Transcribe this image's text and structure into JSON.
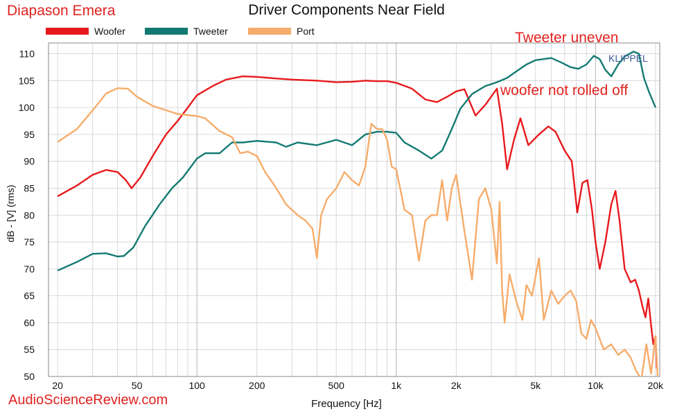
{
  "brand": "Diapason Emera",
  "footer": "AudioScienceReview.com",
  "watermark": "KLIPPEL",
  "annotations": {
    "tweeter": "Tweeter uneven",
    "woofer": "woofer not rolled off"
  },
  "colors": {
    "woofer": "#e8191c",
    "tweeter": "#127a72",
    "port": "#f6ac6a",
    "annotation": "#e0221e",
    "grid": "#cfcfcf",
    "watermark": "#3b5998"
  },
  "chart_data": {
    "type": "line",
    "title": "Driver Components Near Field",
    "xlabel": "Frequency [Hz]",
    "ylabel": "dB - [V] (rms)",
    "xscale": "log",
    "xlim": [
      18,
      21000
    ],
    "ylim": [
      50,
      112
    ],
    "grid": true,
    "legend_position": "top-left",
    "x_ticks": [
      {
        "value": 20,
        "label": "20"
      },
      {
        "value": 50,
        "label": "50"
      },
      {
        "value": 100,
        "label": "100"
      },
      {
        "value": 200,
        "label": "200"
      },
      {
        "value": 500,
        "label": "500"
      },
      {
        "value": 1000,
        "label": "1k"
      },
      {
        "value": 2000,
        "label": "2k"
      },
      {
        "value": 5000,
        "label": "5k"
      },
      {
        "value": 10000,
        "label": "10k"
      },
      {
        "value": 20000,
        "label": "20k"
      }
    ],
    "y_ticks": [
      50,
      55,
      60,
      65,
      70,
      75,
      80,
      85,
      90,
      95,
      100,
      105,
      110
    ],
    "series": [
      {
        "name": "Woofer",
        "points": [
          [
            20,
            83.5
          ],
          [
            25,
            85.5
          ],
          [
            30,
            87.5
          ],
          [
            35,
            88.4
          ],
          [
            40,
            88
          ],
          [
            44,
            86.5
          ],
          [
            47,
            85
          ],
          [
            52,
            87
          ],
          [
            60,
            91
          ],
          [
            70,
            95
          ],
          [
            80,
            97.5
          ],
          [
            90,
            100
          ],
          [
            100,
            102.3
          ],
          [
            120,
            104
          ],
          [
            140,
            105.2
          ],
          [
            170,
            105.8
          ],
          [
            200,
            105.7
          ],
          [
            250,
            105.4
          ],
          [
            300,
            105.2
          ],
          [
            400,
            105
          ],
          [
            500,
            104.7
          ],
          [
            600,
            104.8
          ],
          [
            700,
            105
          ],
          [
            800,
            104.9
          ],
          [
            900,
            104.9
          ],
          [
            1000,
            104.6
          ],
          [
            1200,
            103.5
          ],
          [
            1400,
            101.5
          ],
          [
            1600,
            101
          ],
          [
            1800,
            102
          ],
          [
            2000,
            103
          ],
          [
            2200,
            103.4
          ],
          [
            2500,
            98.5
          ],
          [
            2800,
            100.5
          ],
          [
            3200,
            103.5
          ],
          [
            3400,
            97
          ],
          [
            3600,
            88.5
          ],
          [
            3900,
            94
          ],
          [
            4200,
            98
          ],
          [
            4600,
            93
          ],
          [
            5200,
            95
          ],
          [
            5800,
            96.5
          ],
          [
            6300,
            95.5
          ],
          [
            7000,
            92
          ],
          [
            7600,
            90
          ],
          [
            8100,
            80.5
          ],
          [
            8600,
            86
          ],
          [
            9100,
            86.5
          ],
          [
            9600,
            81
          ],
          [
            10000,
            75
          ],
          [
            10500,
            70
          ],
          [
            11200,
            75
          ],
          [
            12000,
            82
          ],
          [
            12600,
            84.5
          ],
          [
            13200,
            79
          ],
          [
            14000,
            70
          ],
          [
            15000,
            67.5
          ],
          [
            15800,
            68
          ],
          [
            16500,
            66
          ],
          [
            17200,
            63
          ],
          [
            17800,
            61
          ],
          [
            18400,
            64.5
          ],
          [
            19000,
            59.5
          ],
          [
            19500,
            56
          ],
          [
            20000,
            57.5
          ],
          [
            20300,
            51.5
          ]
        ]
      },
      {
        "name": "Tweeter",
        "points": [
          [
            20,
            69.7
          ],
          [
            25,
            71.3
          ],
          [
            30,
            72.8
          ],
          [
            35,
            72.9
          ],
          [
            40,
            72.3
          ],
          [
            43,
            72.4
          ],
          [
            48,
            74
          ],
          [
            55,
            78
          ],
          [
            65,
            82
          ],
          [
            75,
            85
          ],
          [
            85,
            87
          ],
          [
            100,
            90.5
          ],
          [
            110,
            91.5
          ],
          [
            130,
            91.5
          ],
          [
            150,
            93.5
          ],
          [
            170,
            93.5
          ],
          [
            200,
            93.8
          ],
          [
            250,
            93.5
          ],
          [
            280,
            92.7
          ],
          [
            320,
            93.5
          ],
          [
            400,
            93
          ],
          [
            500,
            94
          ],
          [
            600,
            93
          ],
          [
            700,
            95
          ],
          [
            800,
            95.5
          ],
          [
            900,
            95.5
          ],
          [
            1000,
            95.3
          ],
          [
            1100,
            93.5
          ],
          [
            1300,
            92
          ],
          [
            1500,
            90.5
          ],
          [
            1700,
            92
          ],
          [
            1900,
            96
          ],
          [
            2100,
            99.8
          ],
          [
            2400,
            102.5
          ],
          [
            2800,
            104
          ],
          [
            3200,
            104.7
          ],
          [
            3600,
            105.5
          ],
          [
            4000,
            106.7
          ],
          [
            4500,
            108
          ],
          [
            5000,
            108.8
          ],
          [
            6000,
            109.2
          ],
          [
            6800,
            108.3
          ],
          [
            7500,
            107.5
          ],
          [
            8200,
            107.2
          ],
          [
            9000,
            108
          ],
          [
            9800,
            109.6
          ],
          [
            10500,
            109
          ],
          [
            11200,
            107
          ],
          [
            12000,
            105.8
          ],
          [
            13000,
            108
          ],
          [
            14000,
            109.5
          ],
          [
            15500,
            110.4
          ],
          [
            16500,
            110
          ],
          [
            17500,
            105.5
          ],
          [
            18500,
            103
          ],
          [
            19500,
            101
          ],
          [
            20000,
            100
          ]
        ]
      },
      {
        "name": "Port",
        "points": [
          [
            20,
            93.6
          ],
          [
            25,
            96
          ],
          [
            30,
            99.5
          ],
          [
            35,
            102.6
          ],
          [
            40,
            103.6
          ],
          [
            45,
            103.5
          ],
          [
            50,
            102
          ],
          [
            60,
            100.3
          ],
          [
            70,
            99.5
          ],
          [
            80,
            98.8
          ],
          [
            100,
            98.4
          ],
          [
            110,
            98
          ],
          [
            130,
            95.6
          ],
          [
            150,
            94.5
          ],
          [
            165,
            91.5
          ],
          [
            180,
            91.8
          ],
          [
            200,
            91
          ],
          [
            220,
            88
          ],
          [
            240,
            86
          ],
          [
            260,
            84
          ],
          [
            280,
            82
          ],
          [
            320,
            80
          ],
          [
            350,
            79
          ],
          [
            380,
            77.5
          ],
          [
            400,
            72
          ],
          [
            420,
            80
          ],
          [
            450,
            83
          ],
          [
            500,
            85
          ],
          [
            550,
            88
          ],
          [
            600,
            86.5
          ],
          [
            650,
            85.5
          ],
          [
            700,
            89
          ],
          [
            750,
            97
          ],
          [
            800,
            96
          ],
          [
            850,
            96
          ],
          [
            900,
            94
          ],
          [
            950,
            89
          ],
          [
            1000,
            88.5
          ],
          [
            1100,
            81
          ],
          [
            1200,
            80
          ],
          [
            1300,
            71.5
          ],
          [
            1400,
            79
          ],
          [
            1500,
            80
          ],
          [
            1600,
            80
          ],
          [
            1700,
            86.5
          ],
          [
            1800,
            79
          ],
          [
            1900,
            85
          ],
          [
            2000,
            87.5
          ],
          [
            2200,
            77
          ],
          [
            2400,
            68
          ],
          [
            2600,
            83
          ],
          [
            2800,
            85
          ],
          [
            3000,
            81
          ],
          [
            3200,
            71
          ],
          [
            3300,
            82.5
          ],
          [
            3400,
            66
          ],
          [
            3500,
            60
          ],
          [
            3700,
            69
          ],
          [
            4000,
            64
          ],
          [
            4300,
            60.5
          ],
          [
            4500,
            67
          ],
          [
            4800,
            65
          ],
          [
            5200,
            72
          ],
          [
            5500,
            60.5
          ],
          [
            6000,
            66
          ],
          [
            6500,
            63.5
          ],
          [
            7000,
            65
          ],
          [
            7500,
            66
          ],
          [
            8000,
            64
          ],
          [
            8500,
            58
          ],
          [
            9000,
            57
          ],
          [
            9500,
            60.5
          ],
          [
            10000,
            59
          ],
          [
            11000,
            55
          ],
          [
            12000,
            56
          ],
          [
            13000,
            54
          ],
          [
            14000,
            55
          ],
          [
            15000,
            53.5
          ],
          [
            16000,
            51
          ],
          [
            17000,
            49.5
          ],
          [
            18000,
            56
          ],
          [
            19000,
            50.5
          ],
          [
            20000,
            57.5
          ],
          [
            20500,
            50
          ]
        ]
      }
    ]
  }
}
